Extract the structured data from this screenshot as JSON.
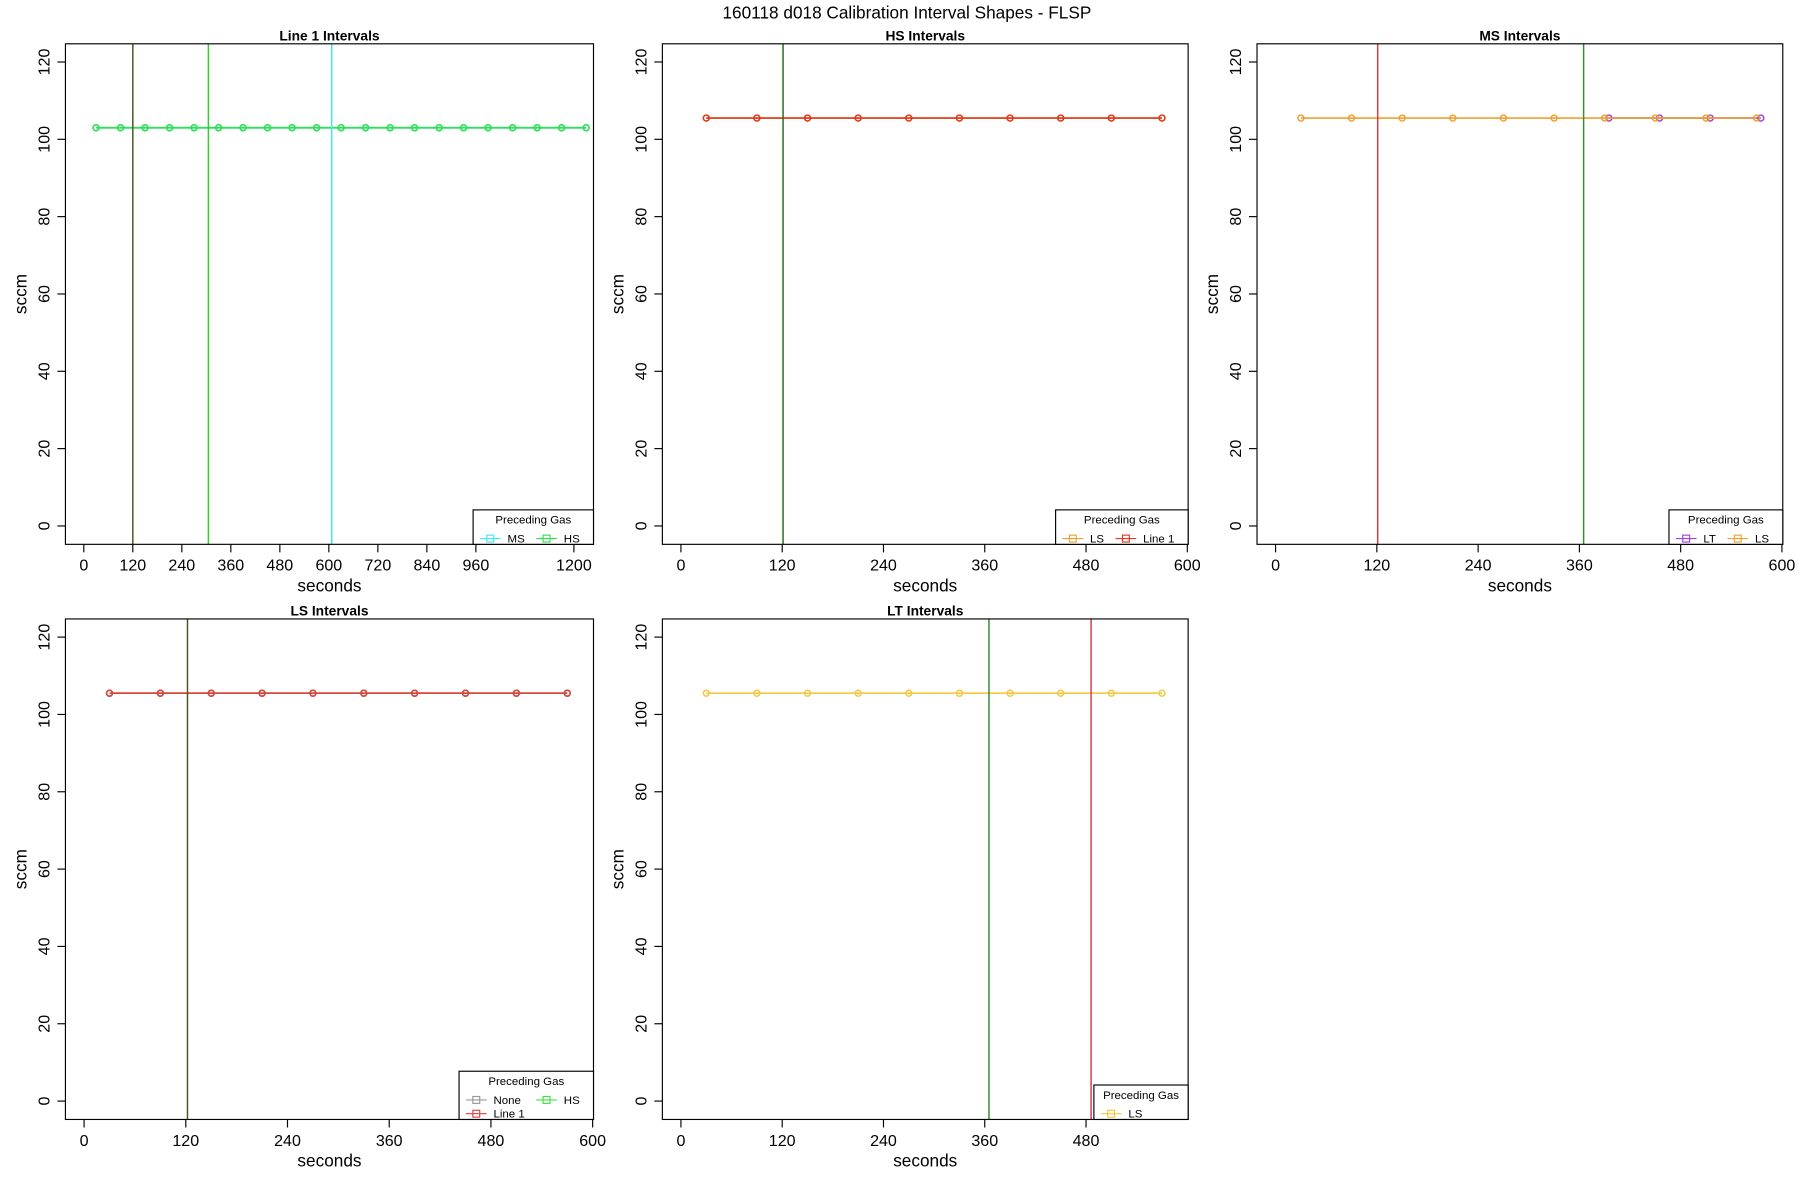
{
  "title": "160118   d018   Calibration Interval Shapes - FLSP",
  "chart_data": [
    {
      "type": "line",
      "title": "Line 1 Intervals",
      "x_label": "seconds",
      "y_label": "sccm",
      "xlim": [
        -45,
        1248
      ],
      "ylim": [
        -4.75,
        124.7
      ],
      "xticks": [
        0,
        120,
        240,
        360,
        480,
        600,
        720,
        840,
        960,
        1200
      ],
      "yticks": [
        0,
        20,
        40,
        60,
        80,
        100,
        120
      ],
      "legend_title": "Preceding Gas",
      "legend": "bottom right",
      "series": [
        {
          "name": "MS",
          "color": "#40e8f0",
          "x": [
            30,
            90,
            150,
            210,
            270,
            330,
            390,
            450,
            510,
            570,
            630,
            690,
            750,
            810,
            870,
            930,
            990,
            1050,
            1110,
            1170,
            1230
          ],
          "values": [
            103,
            103,
            103,
            103,
            103,
            103,
            103,
            103,
            103,
            103,
            103,
            103,
            103,
            103,
            103,
            103,
            103,
            103,
            103,
            103,
            103
          ]
        },
        {
          "name": "HS",
          "color": "#30e050",
          "x": [
            30,
            90,
            150,
            210,
            270,
            330,
            390,
            450,
            510,
            570,
            630,
            690,
            750,
            810,
            870,
            930,
            990,
            1050,
            1110,
            1170,
            1230
          ],
          "values": [
            103,
            103,
            103,
            103,
            103,
            103,
            103,
            103,
            103,
            103,
            103,
            103,
            103,
            103,
            103,
            103,
            103,
            103,
            103,
            103,
            103
          ]
        }
      ],
      "vlines": [
        {
          "x": 120,
          "color": "#4b5a20"
        },
        {
          "x": 305,
          "color": "#33cc33"
        },
        {
          "x": 607,
          "color": "#40e8f0"
        }
      ]
    },
    {
      "type": "line",
      "title": "HS Intervals",
      "x_label": "seconds",
      "y_label": "sccm",
      "xlim": [
        -22,
        601
      ],
      "ylim": [
        -4.75,
        124.7
      ],
      "xticks": [
        0,
        120,
        240,
        360,
        480,
        600
      ],
      "yticks": [
        0,
        20,
        40,
        60,
        80,
        100,
        120
      ],
      "legend_title": "Preceding Gas",
      "legend": "bottom right",
      "series": [
        {
          "name": "LS",
          "color": "#f0a030",
          "x": [
            30,
            90,
            150,
            210,
            270,
            330,
            390,
            450,
            510,
            570
          ],
          "values": [
            105.5,
            105.5,
            105.5,
            105.5,
            105.5,
            105.5,
            105.5,
            105.5,
            105.5,
            105.5
          ]
        },
        {
          "name": "Line 1",
          "color": "#e03a20",
          "x": [
            30,
            90,
            150,
            210,
            270,
            330,
            390,
            450,
            510,
            570
          ],
          "values": [
            105.5,
            105.5,
            105.5,
            105.5,
            105.5,
            105.5,
            105.5,
            105.5,
            105.5,
            105.5
          ]
        }
      ],
      "vlines": [
        {
          "x": 121,
          "color": "#2e6b1e"
        }
      ]
    },
    {
      "type": "line",
      "title": "MS Intervals",
      "x_label": "seconds",
      "y_label": "sccm",
      "xlim": [
        -22,
        601
      ],
      "ylim": [
        -4.75,
        124.7
      ],
      "xticks": [
        0,
        120,
        240,
        360,
        480,
        600
      ],
      "yticks": [
        0,
        20,
        40,
        60,
        80,
        100,
        120
      ],
      "legend_title": "Preceding Gas",
      "legend": "bottom right",
      "series": [
        {
          "name": "LT",
          "color": "#a040e0",
          "x": [
            395,
            455,
            515,
            575
          ],
          "values": [
            105.5,
            105.5,
            105.5,
            105.5
          ]
        },
        {
          "name": "LS",
          "color": "#f0a030",
          "x": [
            30,
            90,
            150,
            210,
            270,
            330,
            390,
            450,
            510,
            570
          ],
          "values": [
            105.5,
            105.5,
            105.5,
            105.5,
            105.5,
            105.5,
            105.5,
            105.5,
            105.5,
            105.5
          ]
        }
      ],
      "vlines": [
        {
          "x": 121,
          "color": "#d04040"
        },
        {
          "x": 365,
          "color": "#3a8a3a"
        }
      ]
    },
    {
      "type": "line",
      "title": "LS Intervals",
      "x_label": "seconds",
      "y_label": "sccm",
      "xlim": [
        -22,
        601
      ],
      "ylim": [
        -4.75,
        124.7
      ],
      "xticks": [
        0,
        120,
        240,
        360,
        480,
        600
      ],
      "yticks": [
        0,
        20,
        40,
        60,
        80,
        100,
        120
      ],
      "legend_title": "Preceding Gas",
      "legend": "bottom right",
      "series": [
        {
          "name": "None",
          "color": "#999999",
          "x": [
            30,
            90,
            150,
            210,
            270,
            330,
            390,
            450,
            510,
            570
          ],
          "values": [
            105.5,
            105.5,
            105.5,
            105.5,
            105.5,
            105.5,
            105.5,
            105.5,
            105.5,
            105.5
          ]
        },
        {
          "name": "HS",
          "color": "#40e040",
          "x": [
            30,
            90,
            150,
            210,
            270,
            330,
            390,
            450,
            510,
            570
          ],
          "values": [
            105.5,
            105.5,
            105.5,
            105.5,
            105.5,
            105.5,
            105.5,
            105.5,
            105.5,
            105.5
          ]
        },
        {
          "name": "Line 1",
          "color": "#e04040",
          "x": [
            30,
            90,
            150,
            210,
            270,
            330,
            390,
            450,
            510,
            570
          ],
          "values": [
            105.5,
            105.5,
            105.5,
            105.5,
            105.5,
            105.5,
            105.5,
            105.5,
            105.5,
            105.5
          ]
        }
      ],
      "vlines": [
        {
          "x": 122,
          "color": "#4b5a20"
        }
      ]
    },
    {
      "type": "line",
      "title": "LT Intervals",
      "x_label": "seconds",
      "y_label": "sccm",
      "xlim": [
        -22,
        601
      ],
      "ylim": [
        -4.75,
        124.7
      ],
      "xticks": [
        0,
        120,
        240,
        360,
        480
      ],
      "yticks": [
        0,
        20,
        40,
        60,
        80,
        100,
        120
      ],
      "legend_title": "Preceding Gas",
      "legend": "bottom right",
      "series": [
        {
          "name": "LS",
          "color": "#f5c842",
          "x": [
            30,
            90,
            150,
            210,
            270,
            330,
            390,
            450,
            510,
            570
          ],
          "values": [
            105.5,
            105.5,
            105.5,
            105.5,
            105.5,
            105.5,
            105.5,
            105.5,
            105.5,
            105.5
          ]
        }
      ],
      "vlines": [
        {
          "x": 365,
          "color": "#3a8a3a"
        },
        {
          "x": 486,
          "color": "#d04050"
        }
      ]
    }
  ]
}
